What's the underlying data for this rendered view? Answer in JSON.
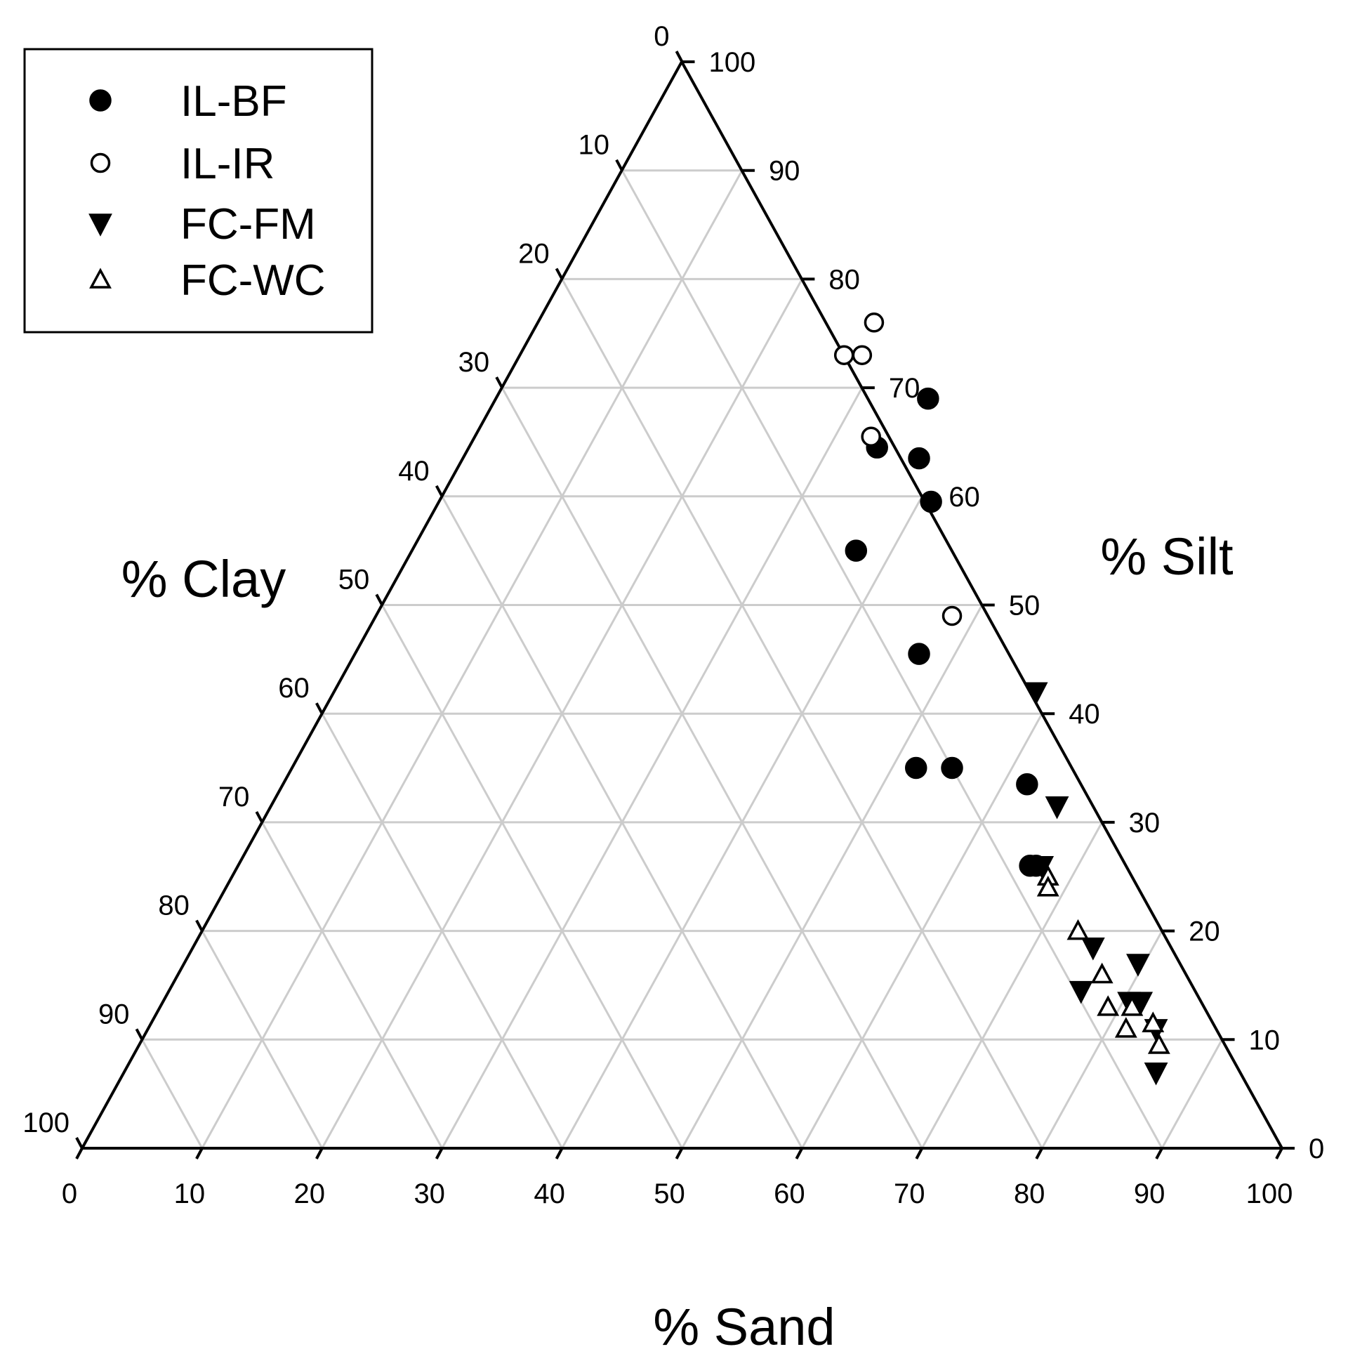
{
  "chart_data": {
    "type": "scatter",
    "subtype": "ternary",
    "axes": {
      "sand": {
        "label": "% Sand",
        "ticks": [
          "0",
          "10",
          "20",
          "30",
          "40",
          "50",
          "60",
          "70",
          "80",
          "90",
          "100"
        ],
        "range": [
          0,
          100
        ]
      },
      "silt": {
        "label": "% Silt",
        "ticks": [
          "0",
          "10",
          "20",
          "30",
          "40",
          "50",
          "60",
          "70",
          "80",
          "90",
          "100"
        ],
        "range": [
          0,
          100
        ]
      },
      "clay": {
        "label": "% Clay",
        "ticks": [
          "0",
          "10",
          "20",
          "30",
          "40",
          "50",
          "60",
          "70",
          "80",
          "90",
          "100"
        ],
        "range": [
          0,
          100
        ]
      }
    },
    "grid": true,
    "grid_color": "#cccccc",
    "legend_position": "top-left",
    "series": [
      {
        "name": "IL-BF",
        "marker": "filled-circle",
        "points": [
          {
            "sand": 36,
            "silt": 69,
            "clay": -5
          },
          {
            "sand": 34,
            "silt": 64.5,
            "clay": 1.5
          },
          {
            "sand": 38,
            "silt": 63.5,
            "clay": -1.5
          },
          {
            "sand": 41,
            "silt": 59.5,
            "clay": -0.5
          },
          {
            "sand": 37,
            "silt": 55,
            "clay": 8
          },
          {
            "sand": 47,
            "silt": 45.5,
            "clay": 7.5
          },
          {
            "sand": 52,
            "silt": 35,
            "clay": 13
          },
          {
            "sand": 55,
            "silt": 35,
            "clay": 10
          },
          {
            "sand": 62,
            "silt": 33.5,
            "clay": 4.5
          },
          {
            "sand": 66,
            "silt": 26,
            "clay": 8
          },
          {
            "sand": 66.5,
            "silt": 26,
            "clay": 7.5
          }
        ]
      },
      {
        "name": "IL-IR",
        "marker": "open-circle",
        "points": [
          {
            "sand": 28,
            "silt": 76,
            "clay": -4
          },
          {
            "sand": 27,
            "silt": 73,
            "clay": 0
          },
          {
            "sand": 28.5,
            "silt": 73,
            "clay": -1.5
          },
          {
            "sand": 33,
            "silt": 65.5,
            "clay": 1.5
          },
          {
            "sand": 48,
            "silt": 49,
            "clay": 3
          }
        ]
      },
      {
        "name": "FC-FM",
        "marker": "filled-triangle-down",
        "points": [
          {
            "sand": 58.5,
            "silt": 42,
            "clay": -0.5
          },
          {
            "sand": 65.5,
            "silt": 31.5,
            "clay": 3
          },
          {
            "sand": 67,
            "silt": 26,
            "clay": 7
          },
          {
            "sand": 75,
            "silt": 18.5,
            "clay": 6.5
          },
          {
            "sand": 79.5,
            "silt": 17,
            "clay": 3.5
          },
          {
            "sand": 76,
            "silt": 14.5,
            "clay": 9.5
          },
          {
            "sand": 80.5,
            "silt": 13.5,
            "clay": 6
          },
          {
            "sand": 81.5,
            "silt": 13.5,
            "clay": 5
          },
          {
            "sand": 84,
            "silt": 11,
            "clay": 5
          },
          {
            "sand": 86,
            "silt": 7,
            "clay": 7
          }
        ]
      },
      {
        "name": "FC-WC",
        "marker": "open-triangle-up",
        "points": [
          {
            "sand": 68,
            "silt": 25,
            "clay": 7
          },
          {
            "sand": 68.5,
            "silt": 24,
            "clay": 7.5
          },
          {
            "sand": 73,
            "silt": 20,
            "clay": 7
          },
          {
            "sand": 77,
            "silt": 16,
            "clay": 7
          },
          {
            "sand": 79,
            "silt": 13,
            "clay": 8
          },
          {
            "sand": 81,
            "silt": 13,
            "clay": 6
          },
          {
            "sand": 81.5,
            "silt": 11,
            "clay": 7.5
          },
          {
            "sand": 83.5,
            "silt": 11.5,
            "clay": 5
          },
          {
            "sand": 85,
            "silt": 9.5,
            "clay": 5.5
          }
        ]
      }
    ]
  }
}
